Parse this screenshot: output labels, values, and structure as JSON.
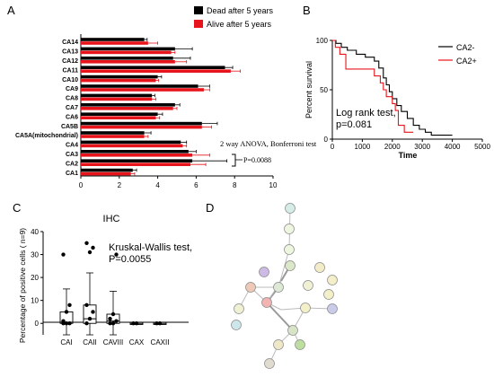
{
  "panels": {
    "a": "A",
    "b": "B",
    "c": "C",
    "d": "D"
  },
  "chart_data": [
    {
      "id": "A",
      "type": "bar",
      "orientation": "horizontal",
      "categories": [
        "CA14",
        "CA13",
        "CA12",
        "CA11",
        "CA10",
        "CA9",
        "CA8",
        "CA7",
        "CA6",
        "CA5B",
        "CA5A(mitochondrial)",
        "CA4",
        "CA3",
        "CA2",
        "CA1"
      ],
      "series": [
        {
          "name": "Dead after 5 years",
          "color": "#000000",
          "values": [
            3.3,
            4.9,
            4.8,
            7.5,
            4.0,
            6.1,
            3.7,
            4.9,
            4.0,
            6.3,
            3.3,
            5.2,
            5.6,
            5.8,
            2.7
          ],
          "errors": [
            0.15,
            0.9,
            0.9,
            0.4,
            0.2,
            0.6,
            0.15,
            0.25,
            0.25,
            0.8,
            0.35,
            0.3,
            0.4,
            1.8,
            0.2
          ]
        },
        {
          "name": "Alive after 5 years",
          "color": "#e8141c",
          "values": [
            3.5,
            4.7,
            4.9,
            7.8,
            3.9,
            6.4,
            3.7,
            4.8,
            3.9,
            6.3,
            3.3,
            5.3,
            5.8,
            5.7,
            2.6
          ],
          "errors": [
            0.5,
            0.2,
            0.6,
            0.5,
            0.15,
            0.3,
            0.2,
            0.2,
            0.2,
            0.5,
            0.2,
            0.2,
            0.9,
            0.8,
            0.2
          ]
        }
      ],
      "xlim": [
        0,
        10
      ],
      "xticks": [
        "0",
        "2",
        "4",
        "6",
        "8",
        "10"
      ],
      "annotation": "2 way ANOVA, Bonferroni test",
      "pvalue": "P=0.0088",
      "legend": "top-right"
    },
    {
      "id": "B",
      "type": "line",
      "xlabel": "Time",
      "ylabel": "Percent survival",
      "xlim": [
        0,
        5000
      ],
      "ylim": [
        0,
        100
      ],
      "xticks": [
        "0",
        "1000",
        "2000",
        "3000",
        "4000",
        "5000"
      ],
      "yticks": [
        "0",
        "50",
        "100"
      ],
      "series": [
        {
          "name": "CA2-",
          "color": "#000000",
          "x": [
            0,
            120,
            120,
            300,
            300,
            500,
            500,
            800,
            800,
            1100,
            1100,
            1400,
            1400,
            1550,
            1550,
            1700,
            1700,
            1800,
            1800,
            1900,
            1900,
            2000,
            2000,
            2150,
            2150,
            2300,
            2300,
            2500,
            2500,
            2700,
            2700,
            2900,
            2900,
            3100,
            3100,
            3300,
            3300,
            4000
          ],
          "y": [
            100,
            100,
            97,
            97,
            93,
            93,
            90,
            90,
            86,
            86,
            83,
            83,
            79,
            79,
            72,
            72,
            62,
            62,
            55,
            55,
            48,
            48,
            41,
            41,
            34,
            34,
            28,
            28,
            21,
            21,
            14,
            14,
            10,
            10,
            7,
            7,
            4,
            4
          ]
        },
        {
          "name": "CA2+",
          "color": "#e8141c",
          "x": [
            0,
            100,
            100,
            250,
            250,
            450,
            450,
            1400,
            1400,
            1600,
            1600,
            1700,
            1700,
            1800,
            1800,
            2000,
            2000,
            2100,
            2100,
            2200,
            2200,
            2400,
            2400,
            2700
          ],
          "y": [
            100,
            100,
            93,
            93,
            86,
            86,
            71,
            71,
            64,
            64,
            57,
            57,
            50,
            50,
            43,
            43,
            36,
            36,
            29,
            29,
            14,
            14,
            7,
            7
          ]
        }
      ],
      "annotation": "Log rank test,\np=0.081",
      "legend": "top-right"
    },
    {
      "id": "C",
      "type": "box",
      "title": "IHC",
      "ylabel": "Percentage of positive cells ( n=9)",
      "categories": [
        "CAI",
        "CAII",
        "CAVIII",
        "CAX",
        "CAXII"
      ],
      "ylim": [
        -5,
        40
      ],
      "yticks": [
        "0",
        "10",
        "20",
        "30",
        "40"
      ],
      "boxes": [
        {
          "q1": 0,
          "median": 0.5,
          "q3": 5,
          "whisker_low": -5,
          "whisker_high": 15,
          "points": [
            0,
            0,
            0,
            1,
            5,
            8,
            30
          ]
        },
        {
          "q1": 0,
          "median": 2,
          "q3": 8,
          "whisker_low": -5,
          "whisker_high": 22,
          "points": [
            0,
            2,
            5,
            8,
            31,
            33,
            35
          ]
        },
        {
          "q1": 0,
          "median": 1,
          "q3": 4,
          "whisker_low": -5,
          "whisker_high": 14,
          "points": [
            0,
            0,
            1,
            2,
            4,
            30
          ]
        },
        {
          "q1": -0.5,
          "median": 0,
          "q3": 0.5,
          "whisker_low": -0.5,
          "whisker_high": 0.5,
          "points": [
            0,
            0
          ]
        },
        {
          "q1": -0.5,
          "median": 0,
          "q3": 0.5,
          "whisker_low": -0.5,
          "whisker_high": 0.5,
          "points": [
            0,
            0
          ]
        }
      ],
      "annotation": "Kruskal-Wallis test,\nP=0.0055"
    }
  ]
}
